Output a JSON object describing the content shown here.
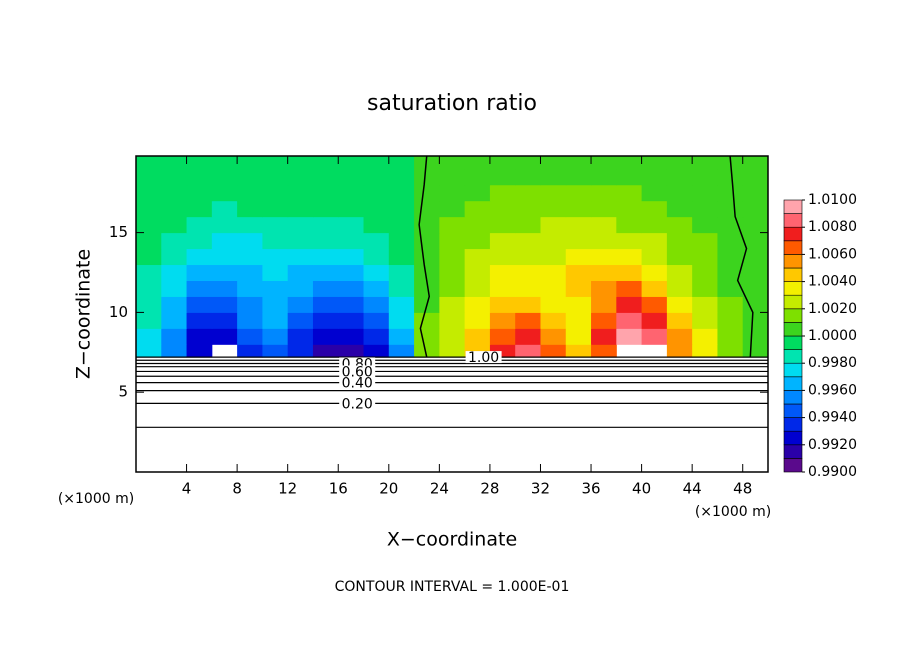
{
  "chart_data": {
    "type": "contour",
    "title": "saturation ratio",
    "x_label": "X−coordinate",
    "y_label": "Z−coordinate",
    "x_unit_left": "(×1000 m)",
    "x_unit_right": "(×1000 m)",
    "footer": "CONTOUR INTERVAL = 1.000E-01",
    "xlim": [
      0,
      50
    ],
    "ylim": [
      0,
      19.8
    ],
    "xticks": [
      4,
      8,
      12,
      16,
      20,
      24,
      28,
      32,
      36,
      40,
      44,
      48
    ],
    "yticks": [
      5,
      10,
      15
    ],
    "field": {
      "x_edges": [
        0,
        2,
        4,
        6,
        8,
        10,
        12,
        14,
        16,
        18,
        20,
        22,
        24,
        26,
        28,
        30,
        32,
        34,
        36,
        38,
        40,
        42,
        44,
        46,
        48,
        50
      ],
      "z_edges": [
        7.2,
        8,
        9,
        10,
        11,
        12,
        13,
        14,
        15,
        16,
        17,
        18,
        19,
        19.8
      ],
      "values": [
        [
          0.997,
          0.995,
          0.992,
          null,
          0.993,
          0.994,
          0.993,
          0.991,
          0.991,
          0.992,
          0.995,
          1.001,
          1.002,
          1.004,
          1.007,
          1.008,
          1.006,
          1.004,
          1.006,
          null,
          null,
          1.005,
          1.003,
          1.001,
          1.0
        ],
        [
          0.997,
          0.995,
          0.992,
          0.992,
          0.994,
          0.995,
          0.993,
          0.992,
          0.992,
          0.993,
          0.996,
          1.001,
          1.002,
          1.004,
          1.006,
          1.007,
          1.005,
          1.003,
          1.007,
          1.009,
          1.008,
          1.005,
          1.003,
          1.001,
          1.0
        ],
        [
          0.998,
          0.996,
          0.993,
          0.993,
          0.995,
          0.996,
          0.994,
          0.993,
          0.993,
          0.994,
          0.997,
          1.001,
          1.002,
          1.003,
          1.005,
          1.006,
          1.004,
          1.003,
          1.006,
          1.008,
          1.007,
          1.004,
          1.002,
          1.001,
          1.0
        ],
        [
          0.998,
          0.996,
          0.994,
          0.994,
          0.995,
          0.996,
          0.995,
          0.994,
          0.994,
          0.995,
          0.997,
          1.0,
          1.002,
          1.003,
          1.004,
          1.004,
          1.003,
          1.003,
          1.005,
          1.007,
          1.006,
          1.003,
          1.002,
          1.001,
          1.0
        ],
        [
          0.998,
          0.997,
          0.995,
          0.995,
          0.996,
          0.996,
          0.996,
          0.995,
          0.995,
          0.996,
          0.998,
          1.0,
          1.001,
          1.002,
          1.003,
          1.003,
          1.003,
          1.004,
          1.005,
          1.006,
          1.004,
          1.002,
          1.001,
          1.0,
          1.0
        ],
        [
          0.998,
          0.997,
          0.996,
          0.996,
          0.996,
          0.997,
          0.996,
          0.996,
          0.996,
          0.997,
          0.998,
          1.0,
          1.001,
          1.002,
          1.003,
          1.003,
          1.003,
          1.004,
          1.004,
          1.004,
          1.003,
          1.002,
          1.001,
          1.0,
          1.0
        ],
        [
          0.999,
          0.998,
          0.997,
          0.997,
          0.997,
          0.997,
          0.997,
          0.997,
          0.997,
          0.998,
          0.999,
          1.0,
          1.001,
          1.002,
          1.002,
          1.002,
          1.002,
          1.003,
          1.003,
          1.003,
          1.002,
          1.001,
          1.001,
          1.0,
          1.0
        ],
        [
          0.999,
          0.998,
          0.998,
          0.997,
          0.997,
          0.998,
          0.998,
          0.998,
          0.998,
          0.998,
          0.999,
          1.0,
          1.001,
          1.001,
          1.002,
          1.002,
          1.002,
          1.002,
          1.002,
          1.002,
          1.002,
          1.001,
          1.001,
          1.0,
          1.0
        ],
        [
          0.999,
          0.999,
          0.998,
          0.998,
          0.998,
          0.998,
          0.998,
          0.998,
          0.998,
          0.999,
          0.999,
          1.0,
          1.001,
          1.001,
          1.001,
          1.001,
          1.002,
          1.002,
          1.002,
          1.001,
          1.001,
          1.001,
          1.0,
          1.0,
          1.0
        ],
        [
          0.999,
          0.999,
          0.999,
          0.998,
          0.999,
          0.999,
          0.999,
          0.999,
          0.999,
          0.999,
          0.999,
          1.0,
          1.0,
          1.001,
          1.001,
          1.001,
          1.001,
          1.001,
          1.001,
          1.001,
          1.001,
          1.0,
          1.0,
          1.0,
          1.0
        ],
        [
          0.999,
          0.999,
          0.999,
          0.999,
          0.999,
          0.999,
          0.999,
          0.999,
          0.999,
          0.999,
          0.999,
          1.0,
          1.0,
          1.0,
          1.001,
          1.001,
          1.001,
          1.001,
          1.001,
          1.001,
          1.0,
          1.0,
          1.0,
          1.0,
          1.0
        ],
        [
          0.999,
          0.999,
          0.999,
          0.999,
          0.999,
          0.999,
          0.999,
          0.999,
          0.999,
          0.999,
          0.999,
          1.0,
          1.0,
          1.0,
          1.0,
          1.0,
          1.0,
          1.0,
          1.0,
          1.0,
          1.0,
          1.0,
          1.0,
          1.0,
          1.0
        ],
        [
          0.999,
          0.999,
          0.999,
          0.999,
          0.999,
          0.999,
          0.999,
          0.999,
          0.999,
          0.999,
          0.999,
          1.0,
          1.0,
          1.0,
          1.0,
          1.0,
          1.0,
          1.0,
          1.0,
          1.0,
          1.0,
          1.0,
          1.0,
          1.0,
          1.0
        ]
      ]
    },
    "contour_lines": [
      {
        "z": 7.2,
        "label": "1.00"
      },
      {
        "z": 7.0
      },
      {
        "z": 6.8,
        "label": "0.80"
      },
      {
        "z": 6.6
      },
      {
        "z": 6.3,
        "label": "0.60"
      },
      {
        "z": 6.0
      },
      {
        "z": 5.6,
        "label": "0.40"
      },
      {
        "z": 5.1
      },
      {
        "z": 4.3,
        "label": "0.20"
      },
      {
        "z": 2.8
      }
    ],
    "contour_paths": [
      {
        "x": [
          23,
          22.5,
          23.2,
          22.8,
          22.4,
          22.8,
          23
        ],
        "z": [
          7.2,
          9,
          11,
          13,
          15.5,
          18,
          19.8
        ]
      },
      {
        "x": [
          48.6,
          48.8,
          47.6,
          48.3,
          47.4,
          47.2,
          47
        ],
        "z": [
          7.2,
          10,
          12,
          14,
          16,
          18,
          19.8
        ]
      }
    ],
    "colorbar": {
      "levels": [
        0.99,
        0.991,
        0.992,
        0.993,
        0.994,
        0.995,
        0.996,
        0.997,
        0.998,
        0.999,
        1.0,
        1.001,
        1.002,
        1.003,
        1.004,
        1.005,
        1.006,
        1.007,
        1.008,
        1.009,
        1.01
      ],
      "colors": [
        "#5a0a8c",
        "#2a00a8",
        "#0000d0",
        "#0028e8",
        "#0058f8",
        "#0088ff",
        "#00b4ff",
        "#00dcf0",
        "#00e4b0",
        "#00dc60",
        "#3cd41e",
        "#7ee000",
        "#c4ec00",
        "#f4f000",
        "#ffc800",
        "#ff9400",
        "#ff5a00",
        "#f01e1e",
        "#ff6470",
        "#ffa4ac"
      ],
      "ticks": [
        {
          "value": 0.99,
          "label": "0.9900"
        },
        {
          "value": 0.992,
          "label": "0.9920"
        },
        {
          "value": 0.994,
          "label": "0.9940"
        },
        {
          "value": 0.996,
          "label": "0.9960"
        },
        {
          "value": 0.998,
          "label": "0.9980"
        },
        {
          "value": 1.0,
          "label": "1.0000"
        },
        {
          "value": 1.002,
          "label": "1.0020"
        },
        {
          "value": 1.004,
          "label": "1.0040"
        },
        {
          "value": 1.006,
          "label": "1.0060"
        },
        {
          "value": 1.008,
          "label": "1.0080"
        },
        {
          "value": 1.01,
          "label": "1.0100"
        }
      ]
    }
  }
}
